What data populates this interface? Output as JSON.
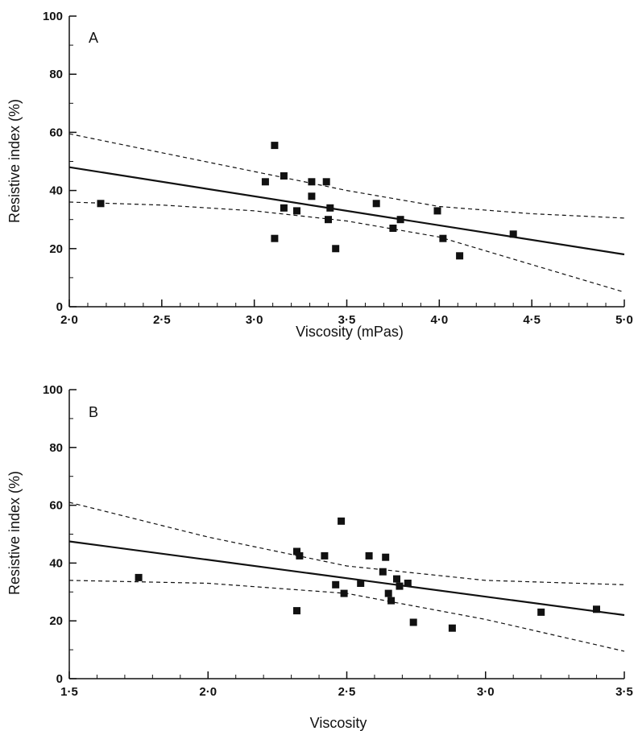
{
  "chart_data": [
    {
      "type": "scatter",
      "panel_label": "A",
      "xlabel": "Viscosity (mPas)",
      "ylabel": "Resistive index (%)",
      "xlim": [
        2.0,
        5.0
      ],
      "ylim": [
        0,
        100
      ],
      "x_ticks": [
        "2·0",
        "2·5",
        "3·0",
        "3·5",
        "4·0",
        "4·5",
        "5·0"
      ],
      "x_tick_values": [
        2.0,
        2.5,
        3.0,
        3.5,
        4.0,
        4.5,
        5.0
      ],
      "x_minor_step": 0.1,
      "y_ticks": [
        "0",
        "20",
        "40",
        "60",
        "80",
        "100"
      ],
      "y_tick_values": [
        0,
        20,
        40,
        60,
        80,
        100
      ],
      "y_minor_step": 10,
      "grid": false,
      "points": [
        {
          "x": 2.17,
          "y": 35.5
        },
        {
          "x": 3.06,
          "y": 43
        },
        {
          "x": 3.11,
          "y": 55.5
        },
        {
          "x": 3.11,
          "y": 23.5
        },
        {
          "x": 3.16,
          "y": 45
        },
        {
          "x": 3.16,
          "y": 34
        },
        {
          "x": 3.23,
          "y": 33
        },
        {
          "x": 3.31,
          "y": 43
        },
        {
          "x": 3.31,
          "y": 38
        },
        {
          "x": 3.39,
          "y": 43
        },
        {
          "x": 3.4,
          "y": 30
        },
        {
          "x": 3.41,
          "y": 34
        },
        {
          "x": 3.44,
          "y": 20
        },
        {
          "x": 3.66,
          "y": 35.5
        },
        {
          "x": 3.75,
          "y": 27
        },
        {
          "x": 3.79,
          "y": 30
        },
        {
          "x": 3.99,
          "y": 33
        },
        {
          "x": 4.02,
          "y": 23.5
        },
        {
          "x": 4.11,
          "y": 17.5
        },
        {
          "x": 4.4,
          "y": 25
        }
      ],
      "fit_line": [
        {
          "x": 2.0,
          "y": 48
        },
        {
          "x": 5.0,
          "y": 18
        }
      ],
      "confidence_upper": [
        {
          "x": 2.0,
          "y": 59.5
        },
        {
          "x": 2.5,
          "y": 53
        },
        {
          "x": 3.0,
          "y": 46.5
        },
        {
          "x": 3.5,
          "y": 40
        },
        {
          "x": 4.0,
          "y": 34.5
        },
        {
          "x": 4.5,
          "y": 32
        },
        {
          "x": 5.0,
          "y": 30.5
        }
      ],
      "confidence_lower": [
        {
          "x": 2.0,
          "y": 36
        },
        {
          "x": 2.5,
          "y": 35
        },
        {
          "x": 3.0,
          "y": 33
        },
        {
          "x": 3.5,
          "y": 29.5
        },
        {
          "x": 4.0,
          "y": 24
        },
        {
          "x": 4.5,
          "y": 14.5
        },
        {
          "x": 5.0,
          "y": 5
        }
      ],
      "point_color": "#111111",
      "line_color": "#111111"
    },
    {
      "type": "scatter",
      "panel_label": "B",
      "xlabel": "Viscosity",
      "ylabel": "Resistive index (%)",
      "xlim": [
        1.5,
        3.5
      ],
      "ylim": [
        0,
        100
      ],
      "x_ticks": [
        "1·5",
        "2·0",
        "2·5",
        "3·0",
        "3·5"
      ],
      "x_tick_values": [
        1.5,
        2.0,
        2.5,
        3.0,
        3.5
      ],
      "x_minor_step": 0.1,
      "y_ticks": [
        "0",
        "20",
        "40",
        "60",
        "80",
        "100"
      ],
      "y_tick_values": [
        0,
        20,
        40,
        60,
        80,
        100
      ],
      "y_minor_step": 10,
      "grid": false,
      "points": [
        {
          "x": 1.75,
          "y": 35
        },
        {
          "x": 2.32,
          "y": 44
        },
        {
          "x": 2.33,
          "y": 42.5
        },
        {
          "x": 2.32,
          "y": 23.5
        },
        {
          "x": 2.42,
          "y": 42.5
        },
        {
          "x": 2.46,
          "y": 32.5
        },
        {
          "x": 2.48,
          "y": 54.5
        },
        {
          "x": 2.49,
          "y": 29.5
        },
        {
          "x": 2.55,
          "y": 33
        },
        {
          "x": 2.58,
          "y": 42.5
        },
        {
          "x": 2.63,
          "y": 37
        },
        {
          "x": 2.64,
          "y": 42
        },
        {
          "x": 2.65,
          "y": 29.5
        },
        {
          "x": 2.66,
          "y": 27
        },
        {
          "x": 2.68,
          "y": 34.5
        },
        {
          "x": 2.69,
          "y": 32
        },
        {
          "x": 2.72,
          "y": 33
        },
        {
          "x": 2.74,
          "y": 19.5
        },
        {
          "x": 2.88,
          "y": 17.5
        },
        {
          "x": 3.2,
          "y": 23
        },
        {
          "x": 3.4,
          "y": 24
        }
      ],
      "fit_line": [
        {
          "x": 1.5,
          "y": 47.5
        },
        {
          "x": 3.5,
          "y": 22
        }
      ],
      "confidence_upper": [
        {
          "x": 1.5,
          "y": 61
        },
        {
          "x": 2.0,
          "y": 49
        },
        {
          "x": 2.5,
          "y": 39
        },
        {
          "x": 3.0,
          "y": 34
        },
        {
          "x": 3.5,
          "y": 32.5
        }
      ],
      "confidence_lower": [
        {
          "x": 1.5,
          "y": 34
        },
        {
          "x": 2.0,
          "y": 33
        },
        {
          "x": 2.5,
          "y": 29.5
        },
        {
          "x": 3.0,
          "y": 20.5
        },
        {
          "x": 3.5,
          "y": 9.5
        }
      ],
      "point_color": "#111111",
      "line_color": "#111111"
    }
  ]
}
